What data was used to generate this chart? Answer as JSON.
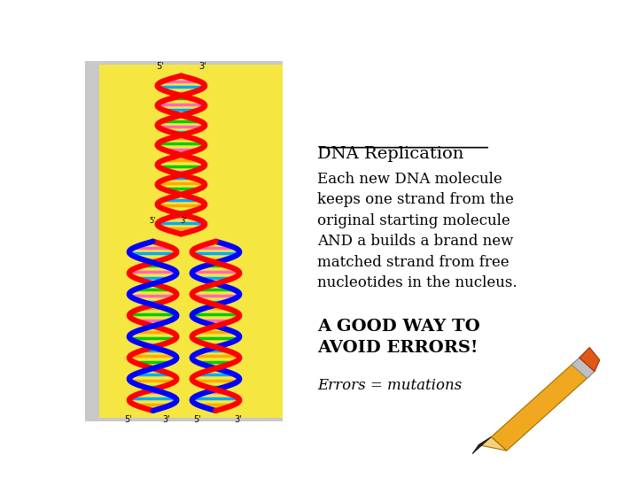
{
  "bg_color": "#ffffff",
  "gray_border_color": "#c8c8c8",
  "dna_panel_bg": "#f5e642",
  "title": "DNA Replication",
  "body_text": "Each new DNA molecule\nkeeps one strand from the\noriginal starting molecule\nAND a builds a brand new\nmatched strand from free\nnucleotides in the nucleus.",
  "bold_text": "A GOOD WAY TO\nAVOID ERRORS!",
  "italic_text": "Errors = mutations",
  "title_fontsize": 14,
  "body_fontsize": 12,
  "bold_fontsize": 14,
  "italic_fontsize": 12,
  "rung_colors": [
    "#00cc00",
    "#ff69b4",
    "#00aaff",
    "#ffaa00"
  ]
}
